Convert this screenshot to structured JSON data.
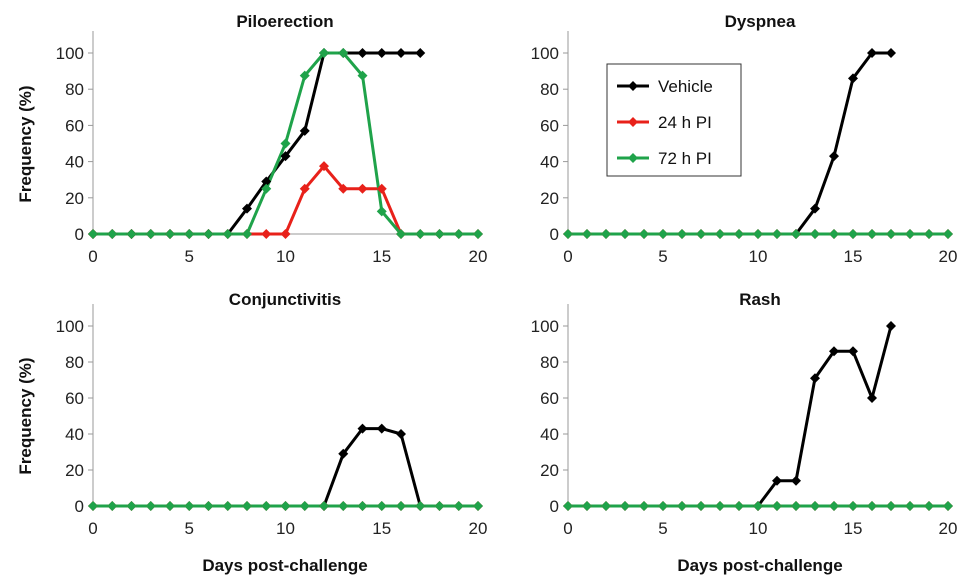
{
  "figure": {
    "xlabel": "Days post-challenge",
    "ylabel": "Frequency (%)"
  },
  "legend": {
    "placement": "inside-top-left of Dyspnea panel",
    "entries": [
      {
        "name": "Vehicle",
        "color": "#000000"
      },
      {
        "name": "24 h PI",
        "color": "#e8211a"
      },
      {
        "name": "72 h PI",
        "color": "#1fa34a"
      }
    ]
  },
  "chart_data": [
    {
      "type": "line",
      "title": "Piloerection",
      "xlim": [
        0,
        20
      ],
      "ylim": [
        0,
        100
      ],
      "xticks": [
        0,
        5,
        10,
        15,
        20
      ],
      "yticks": [
        0,
        20,
        40,
        60,
        80,
        100
      ],
      "series": [
        {
          "name": "Vehicle",
          "color": "#000000",
          "x": [
            0,
            1,
            2,
            3,
            4,
            5,
            6,
            7,
            8,
            9,
            10,
            11,
            12,
            13,
            14,
            15,
            16,
            17
          ],
          "y": [
            0,
            0,
            0,
            0,
            0,
            0,
            0,
            0,
            14,
            29,
            43,
            57,
            100,
            100,
            100,
            100,
            100,
            100
          ]
        },
        {
          "name": "24 h PI",
          "color": "#e8211a",
          "x": [
            0,
            1,
            2,
            3,
            4,
            5,
            6,
            7,
            8,
            9,
            10,
            11,
            12,
            13,
            14,
            15,
            16,
            17,
            18,
            19,
            20
          ],
          "y": [
            0,
            0,
            0,
            0,
            0,
            0,
            0,
            0,
            0,
            0,
            0,
            25,
            37.5,
            25,
            25,
            25,
            0,
            0,
            0,
            0,
            0
          ]
        },
        {
          "name": "72 h PI",
          "color": "#1fa34a",
          "x": [
            0,
            1,
            2,
            3,
            4,
            5,
            6,
            7,
            8,
            9,
            10,
            11,
            12,
            13,
            14,
            15,
            16,
            17,
            18,
            19,
            20
          ],
          "y": [
            0,
            0,
            0,
            0,
            0,
            0,
            0,
            0,
            0,
            25,
            50,
            87.5,
            100,
            100,
            87.5,
            12.5,
            0,
            0,
            0,
            0,
            0
          ]
        }
      ]
    },
    {
      "type": "line",
      "title": "Dyspnea",
      "xlim": [
        0,
        20
      ],
      "ylim": [
        0,
        100
      ],
      "xticks": [
        0,
        5,
        10,
        15,
        20
      ],
      "yticks": [
        0,
        20,
        40,
        60,
        80,
        100
      ],
      "series": [
        {
          "name": "Vehicle",
          "color": "#000000",
          "x": [
            12,
            13,
            14,
            15,
            16,
            17
          ],
          "y": [
            0,
            14,
            43,
            86,
            100,
            100
          ]
        },
        {
          "name": "24 h PI",
          "color": "#e8211a",
          "x": [
            0,
            1,
            2,
            3,
            4,
            5,
            6,
            7,
            8,
            9,
            10,
            11,
            12,
            13,
            14,
            15,
            16,
            17,
            18,
            19,
            20
          ],
          "y": [
            0,
            0,
            0,
            0,
            0,
            0,
            0,
            0,
            0,
            0,
            0,
            0,
            0,
            0,
            0,
            0,
            0,
            0,
            0,
            0,
            0
          ]
        },
        {
          "name": "72 h PI",
          "color": "#1fa34a",
          "x": [
            0,
            1,
            2,
            3,
            4,
            5,
            6,
            7,
            8,
            9,
            10,
            11,
            12,
            13,
            14,
            15,
            16,
            17,
            18,
            19,
            20
          ],
          "y": [
            0,
            0,
            0,
            0,
            0,
            0,
            0,
            0,
            0,
            0,
            0,
            0,
            0,
            0,
            0,
            0,
            0,
            0,
            0,
            0,
            0
          ]
        }
      ]
    },
    {
      "type": "line",
      "title": "Conjunctivitis",
      "xlim": [
        0,
        20
      ],
      "ylim": [
        0,
        100
      ],
      "xticks": [
        0,
        5,
        10,
        15,
        20
      ],
      "yticks": [
        0,
        20,
        40,
        60,
        80,
        100
      ],
      "series": [
        {
          "name": "Vehicle",
          "color": "#000000",
          "x": [
            12,
            13,
            14,
            15,
            16,
            17
          ],
          "y": [
            0,
            29,
            43,
            43,
            40,
            0
          ]
        },
        {
          "name": "24 h PI",
          "color": "#e8211a",
          "x": [
            0,
            1,
            2,
            3,
            4,
            5,
            6,
            7,
            8,
            9,
            10,
            11,
            12,
            13,
            14,
            15,
            16,
            17,
            18,
            19,
            20
          ],
          "y": [
            0,
            0,
            0,
            0,
            0,
            0,
            0,
            0,
            0,
            0,
            0,
            0,
            0,
            0,
            0,
            0,
            0,
            0,
            0,
            0,
            0
          ]
        },
        {
          "name": "72 h PI",
          "color": "#1fa34a",
          "x": [
            0,
            1,
            2,
            3,
            4,
            5,
            6,
            7,
            8,
            9,
            10,
            11,
            12,
            13,
            14,
            15,
            16,
            17,
            18,
            19,
            20
          ],
          "y": [
            0,
            0,
            0,
            0,
            0,
            0,
            0,
            0,
            0,
            0,
            0,
            0,
            0,
            0,
            0,
            0,
            0,
            0,
            0,
            0,
            0
          ]
        }
      ]
    },
    {
      "type": "line",
      "title": "Rash",
      "xlim": [
        0,
        20
      ],
      "ylim": [
        0,
        100
      ],
      "xticks": [
        0,
        5,
        10,
        15,
        20
      ],
      "yticks": [
        0,
        20,
        40,
        60,
        80,
        100
      ],
      "series": [
        {
          "name": "Vehicle",
          "color": "#000000",
          "x": [
            10,
            11,
            12,
            13,
            14,
            15,
            16,
            17
          ],
          "y": [
            0,
            14,
            14,
            71,
            86,
            86,
            60,
            100
          ]
        },
        {
          "name": "24 h PI",
          "color": "#e8211a",
          "x": [
            0,
            1,
            2,
            3,
            4,
            5,
            6,
            7,
            8,
            9,
            10,
            11,
            12,
            13,
            14,
            15,
            16,
            17,
            18,
            19,
            20
          ],
          "y": [
            0,
            0,
            0,
            0,
            0,
            0,
            0,
            0,
            0,
            0,
            0,
            0,
            0,
            0,
            0,
            0,
            0,
            0,
            0,
            0,
            0
          ]
        },
        {
          "name": "72 h PI",
          "color": "#1fa34a",
          "x": [
            0,
            1,
            2,
            3,
            4,
            5,
            6,
            7,
            8,
            9,
            10,
            11,
            12,
            13,
            14,
            15,
            16,
            17,
            18,
            19,
            20
          ],
          "y": [
            0,
            0,
            0,
            0,
            0,
            0,
            0,
            0,
            0,
            0,
            0,
            0,
            0,
            0,
            0,
            0,
            0,
            0,
            0,
            0,
            0
          ]
        }
      ]
    }
  ]
}
